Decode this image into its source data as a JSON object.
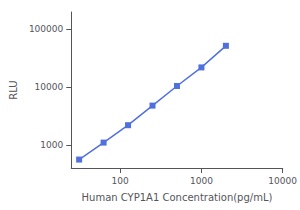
{
  "chart_data": {
    "type": "line",
    "x": [
      31.25,
      62.5,
      125,
      250,
      500,
      1000,
      2000
    ],
    "values": [
      560,
      1100,
      2200,
      4800,
      10500,
      22000,
      52000
    ],
    "xlabel": "Human CYP1A1 Concentration(pg/mL)",
    "ylabel": "RLU",
    "xlim": [
      25,
      10000
    ],
    "ylim": [
      400,
      200000
    ],
    "xticks": [
      100,
      1000,
      10000
    ],
    "yticks": [
      1000,
      10000,
      100000
    ],
    "log": true,
    "grid": false,
    "marker": "square",
    "line_style": "solid"
  }
}
